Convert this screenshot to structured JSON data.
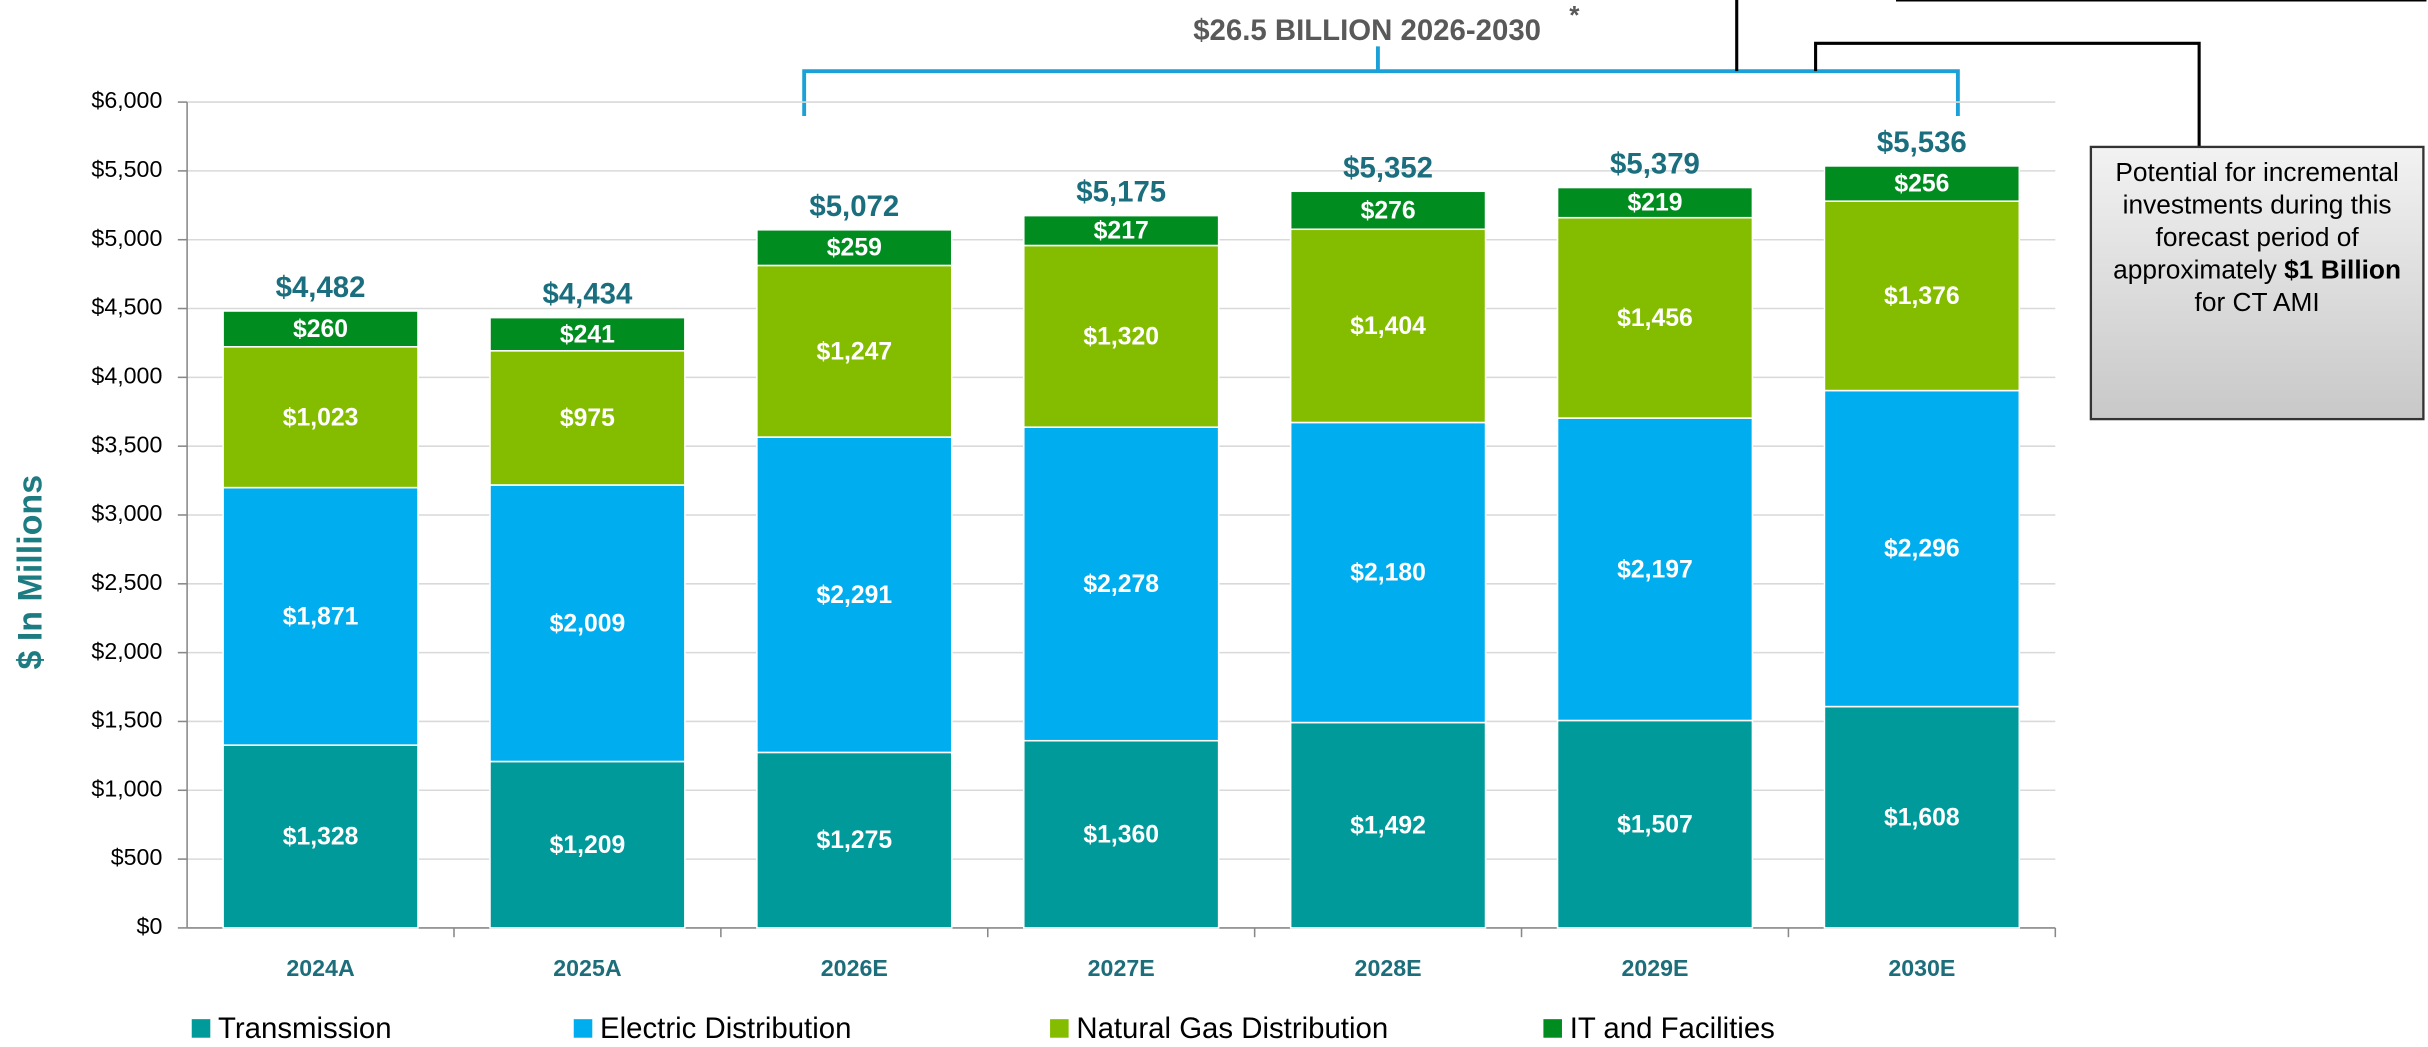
{
  "chart_data": {
    "type": "bar",
    "stacked": true,
    "title": "$26.5 BILLION 2026-2030",
    "title_mark": "*",
    "ylabel": "$ In Millions",
    "categories": [
      "2024A",
      "2025A",
      "2026E",
      "2027E",
      "2028E",
      "2029E",
      "2030E"
    ],
    "series": [
      {
        "name": "Transmission",
        "color": "#009a9a",
        "values": [
          1328,
          1209,
          1275,
          1360,
          1492,
          1507,
          1608
        ],
        "value_labels": [
          "$1,328",
          "$1,209",
          "$1,275",
          "$1,360",
          "$1,492",
          "$1,507",
          "$1,608"
        ]
      },
      {
        "name": "Electric Distribution",
        "color": "#00aeef",
        "values": [
          1871,
          2009,
          2291,
          2278,
          2180,
          2197,
          2296
        ],
        "value_labels": [
          "$1,871",
          "$2,009",
          "$2,291",
          "$2,278",
          "$2,180",
          "$2,197",
          "$2,296"
        ]
      },
      {
        "name": "Natural Gas Distribution",
        "color": "#84bd00",
        "values": [
          1023,
          975,
          1247,
          1320,
          1404,
          1456,
          1376
        ],
        "value_labels": [
          "$1,023",
          "$975",
          "$1,247",
          "$1,320",
          "$1,404",
          "$1,456",
          "$1,376"
        ]
      },
      {
        "name": "IT and Facilities",
        "color": "#008c1e",
        "values": [
          260,
          241,
          259,
          217,
          276,
          219,
          256
        ],
        "value_labels": [
          "$260",
          "$241",
          "$259",
          "$217",
          "$276",
          "$219",
          "$256"
        ]
      }
    ],
    "totals": [
      4482,
      4434,
      5072,
      5175,
      5352,
      5379,
      5536
    ],
    "total_labels": [
      "$4,482",
      "$4,434",
      "$5,072",
      "$5,175",
      "$5,352",
      "$5,379",
      "$5,536"
    ],
    "ylim": [
      0,
      6000
    ],
    "yticks": [
      {
        "value": 0,
        "label": "$0"
      },
      {
        "value": 500,
        "label": "$500"
      },
      {
        "value": 1000,
        "label": "$1,000"
      },
      {
        "value": 1500,
        "label": "$1,500"
      },
      {
        "value": 2000,
        "label": "$2,000"
      },
      {
        "value": 2500,
        "label": "$2,500"
      },
      {
        "value": 3000,
        "label": "$3,000"
      },
      {
        "value": 3500,
        "label": "$3,500"
      },
      {
        "value": 4000,
        "label": "$4,000"
      },
      {
        "value": 4500,
        "label": "$4,500"
      },
      {
        "value": 5000,
        "label": "$5,000"
      },
      {
        "value": 5500,
        "label": "$5,500"
      },
      {
        "value": 6000,
        "label": "$6,000"
      }
    ],
    "grid": true,
    "legend": "bottom",
    "callout": {
      "parts": [
        "Potential for incremental investments during this forecast period of approximately ",
        "$1 Billion",
        " for CT AMI"
      ]
    }
  }
}
